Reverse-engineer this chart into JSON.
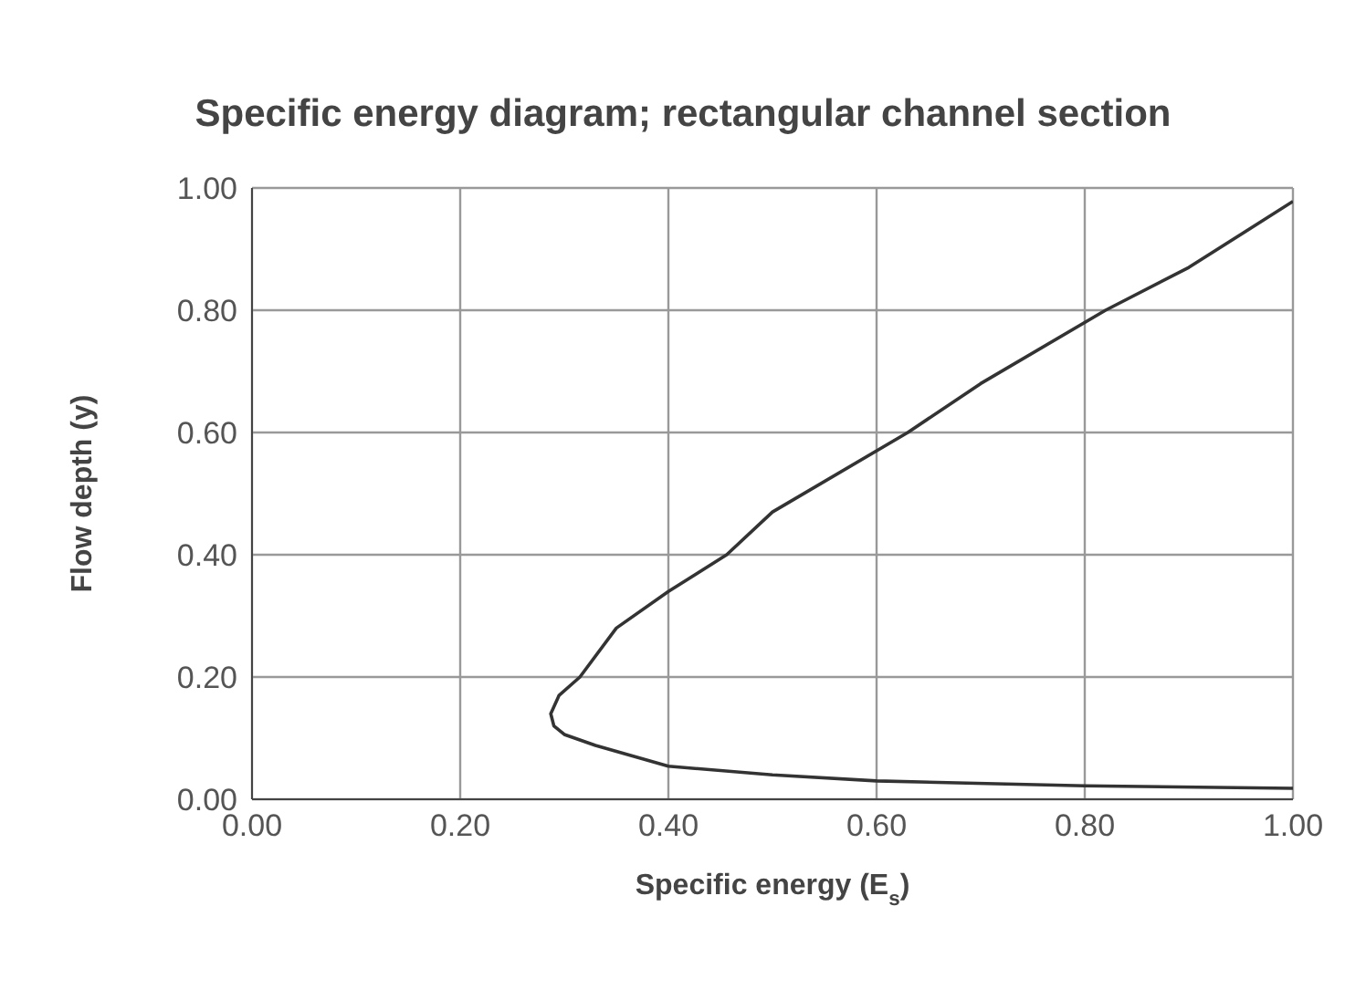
{
  "chart_data": {
    "type": "line",
    "title": "Specific energy diagram; rectangular channel section",
    "xlabel": "Specific energy (E$_{s}$)",
    "ylabel": "Flow depth (y)",
    "series": [
      {
        "color": "#333333",
        "x": [
          1.0,
          0.9,
          0.82,
          0.7,
          0.63,
          0.5,
          0.456,
          0.4,
          0.35,
          0.315,
          0.295,
          0.287,
          0.29,
          0.3,
          0.33,
          0.4,
          0.5,
          0.6,
          0.8,
          1.0
        ],
        "values": [
          0.978,
          0.87,
          0.8,
          0.68,
          0.6,
          0.47,
          0.4,
          0.34,
          0.28,
          0.2,
          0.17,
          0.14,
          0.12,
          0.106,
          0.088,
          0.054,
          0.04,
          0.03,
          0.022,
          0.018
        ]
      }
    ],
    "xlim": [
      0,
      1
    ],
    "ylim": [
      0,
      1
    ],
    "xticks": [
      {
        "value": 0,
        "label": "0.00"
      },
      {
        "value": 0.2,
        "label": "0.20"
      },
      {
        "value": 0.4,
        "label": "0.40"
      },
      {
        "value": 0.6,
        "label": "0.60"
      },
      {
        "value": 0.8,
        "label": "0.80"
      },
      {
        "value": 1,
        "label": "1.00"
      }
    ],
    "yticks": [
      {
        "value": 0,
        "label": "0.00"
      },
      {
        "value": 0.2,
        "label": "0.20"
      },
      {
        "value": 0.4,
        "label": "0.40"
      },
      {
        "value": 0.6,
        "label": "0.60"
      },
      {
        "value": 0.8,
        "label": "0.80"
      },
      {
        "value": 1,
        "label": "1.00"
      }
    ],
    "grid": true,
    "marker": "none",
    "line_style": "solid"
  }
}
